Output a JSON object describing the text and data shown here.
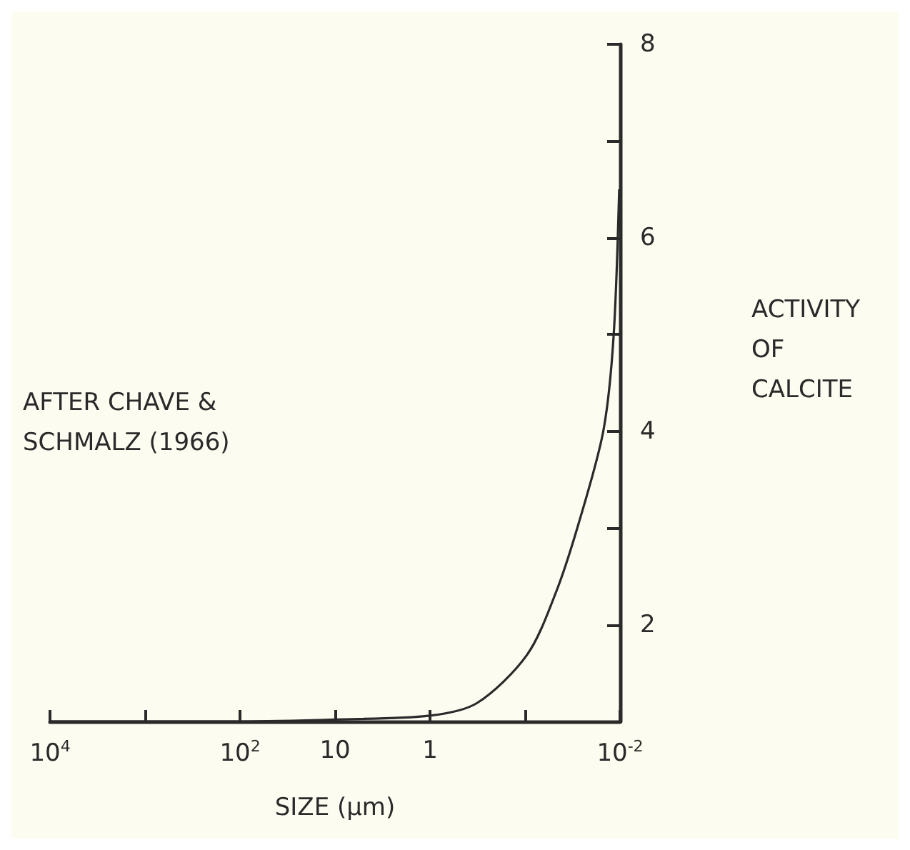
{
  "chart_data": {
    "type": "line",
    "xlabel": "SIZE (μm)",
    "ylabel": "ACTIVITY OF CALCITE",
    "annotations": [
      "AFTER CHAVE & SCHMALZ (1966)"
    ],
    "log": "x",
    "grid": false,
    "x": [
      10000,
      1000,
      100,
      10,
      1,
      0.32,
      0.095,
      0.047,
      0.027,
      0.015,
      0.0117,
      0.0102
    ],
    "series": [
      {
        "color": "#2a2a2a",
        "values": [
          1.0,
          1.0,
          1.0,
          1.02,
          1.06,
          1.19,
          1.69,
          2.34,
          3.06,
          4.0,
          4.97,
          6.5
        ]
      }
    ],
    "xlim": [
      10000,
      0.01
    ],
    "xticks": [
      {
        "value": 10000,
        "label": "10$^{4}$"
      },
      {
        "value": 1000,
        "label": null
      },
      {
        "value": 100,
        "label": "10$^{2}$"
      },
      10,
      1,
      {
        "value": 0.1,
        "label": null
      },
      {
        "value": 0.01,
        "label": "10$^{-2}$"
      }
    ],
    "ylim": [
      1,
      8
    ],
    "yticks": [
      2,
      {
        "value": 3,
        "label": null
      },
      4,
      {
        "value": 5,
        "label": null
      },
      6,
      {
        "value": 7,
        "label": null
      },
      8
    ]
  }
}
